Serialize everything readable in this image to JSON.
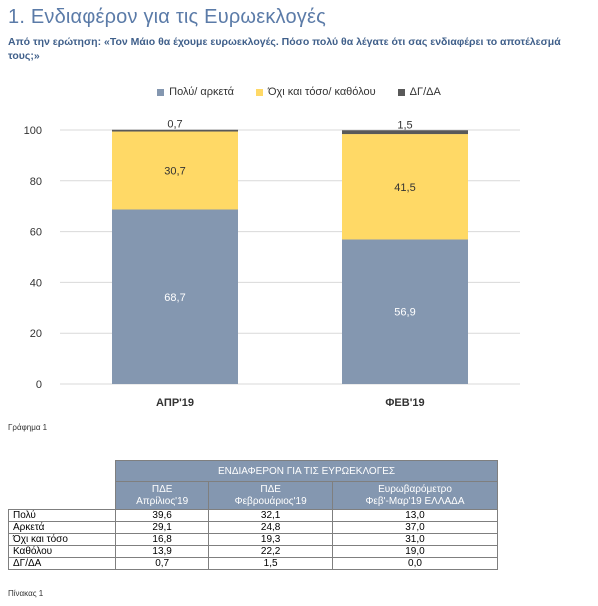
{
  "title": "1. Ενδιαφέρον για τις Ευρωεκλογές",
  "question": "Από την ερώτηση: «Τον Μάιο θα έχουμε ευρωεκλογές. Πόσο πολύ θα λέγατε ότι σας ενδιαφέρει το αποτέλεσμά τους;»",
  "colors": {
    "series1": "#8497b0",
    "series2": "#ffd966",
    "series3": "#595959",
    "title": "#5b7ba8"
  },
  "chart_data": {
    "type": "bar",
    "stacked": true,
    "categories": [
      "ΑΠΡ'19",
      "ΦΕΒ'19"
    ],
    "series": [
      {
        "name": "Πολύ/ αρκετά",
        "values": [
          68.7,
          56.9
        ],
        "labels": [
          "68,7",
          "56,9"
        ]
      },
      {
        "name": "Όχι και τόσο/ καθόλου",
        "values": [
          30.7,
          41.5
        ],
        "labels": [
          "30,7",
          "41,5"
        ]
      },
      {
        "name": "ΔΓ/ΔΑ",
        "values": [
          0.7,
          1.5
        ],
        "labels": [
          "0,7",
          "1,5"
        ]
      }
    ],
    "ylim": [
      0,
      100
    ],
    "yticks": [
      0,
      20,
      40,
      60,
      80,
      100
    ],
    "grid": true,
    "legend": "top-center"
  },
  "figure_caption": "Γράφημα 1",
  "table": {
    "group_header": "ΕΝΔΙΑΦΕΡΟΝ ΓΙΑ ΤΙΣ ΕΥΡΩΕΚΛΟΓΕΣ",
    "columns": [
      {
        "line1": "ΠΔΕ",
        "line2": "Απρίλιος'19"
      },
      {
        "line1": "ΠΔΕ",
        "line2": "Φεβρουάριος'19"
      },
      {
        "line1": "Ευρωβαρόμετρο",
        "line2": "Φεβ'-Μαρ'19 ΕΛΛΑΔΑ"
      }
    ],
    "rows": [
      {
        "label": "Πολύ",
        "values": [
          "39,6",
          "32,1",
          "13,0"
        ]
      },
      {
        "label": "Αρκετά",
        "values": [
          "29,1",
          "24,8",
          "37,0"
        ]
      },
      {
        "label": "Όχι και τόσο",
        "values": [
          "16,8",
          "19,3",
          "31,0"
        ]
      },
      {
        "label": "Καθόλου",
        "values": [
          "13,9",
          "22,2",
          "19,0"
        ]
      },
      {
        "label": "ΔΓ/ΔΑ",
        "values": [
          "0,7",
          "1,5",
          "0,0"
        ]
      }
    ]
  },
  "table_caption": "Πίνακας 1"
}
